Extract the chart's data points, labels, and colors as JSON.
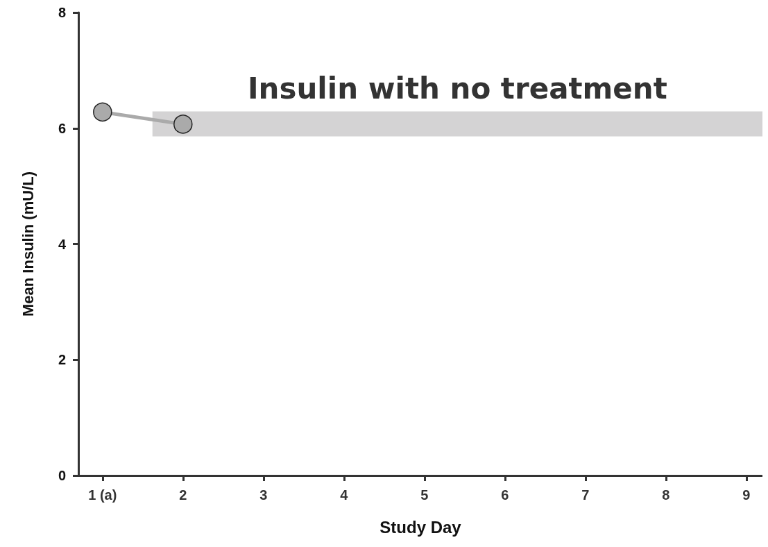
{
  "chart_data": {
    "type": "line",
    "xlabel": "Study Day",
    "ylabel": "Mean Insulin (mU/L)",
    "x": [
      1,
      2
    ],
    "series": [
      {
        "color": "#aaaaaa",
        "values": [
          6.28,
          6.07
        ]
      }
    ],
    "xlim": [
      0.7,
      9.2
    ],
    "xticks": [
      {
        "value": 1,
        "label": "1 (a)"
      },
      2,
      3,
      4,
      5,
      6,
      7,
      8,
      9
    ],
    "ylim": [
      0,
      8
    ],
    "yticks": [
      0,
      2,
      4,
      6,
      8
    ],
    "bands": [
      {
        "axis": "y",
        "from": 5.86,
        "to": 6.29,
        "label": "Insulin with no treatment",
        "color": "#d4d3d4"
      }
    ],
    "grid": false,
    "marker": "circle",
    "line_style": "solid"
  }
}
